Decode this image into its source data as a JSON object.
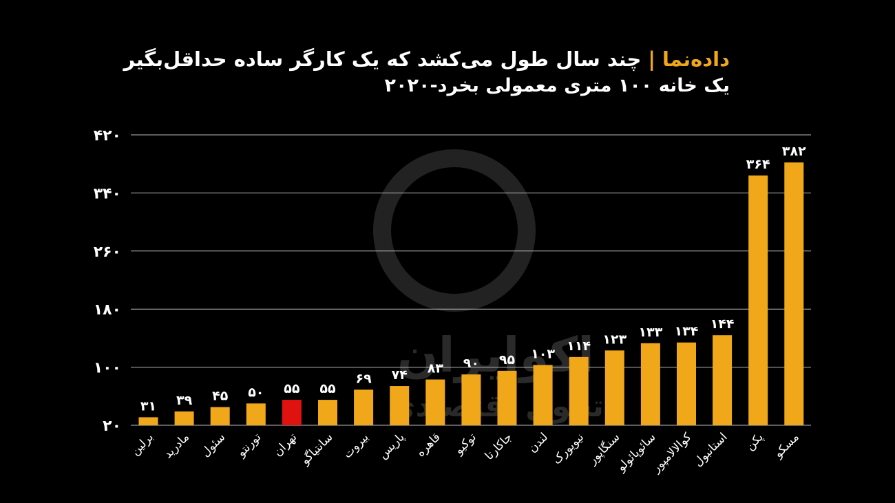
{
  "header": {
    "brand": "داده‌نما",
    "separator": "|",
    "title_line1": "چند سال طول می‌کشد که یک کارگر ساده حداقل‌بگیر",
    "title_line2": "یک خانه ۱۰۰ متری معمولی بخرد-۲۰۲۰"
  },
  "watermark": {
    "main": "اکوایران",
    "sub": "تحول اقتصادی"
  },
  "colors": {
    "bar": "#f0a81a",
    "highlight": "#e0120f",
    "grid": "#bdbdbd",
    "background": "#000000"
  },
  "chart_data": {
    "type": "bar",
    "categories": [
      "برلین",
      "مادرید",
      "سئول",
      "تورنتو",
      "تهران",
      "سانتیاگو",
      "بیروت",
      "پاریس",
      "قاهره",
      "توکیو",
      "جاکارتا",
      "لندن",
      "نیویورک",
      "سنگاپور",
      "سائوپائولو",
      "کوالالامپور",
      "استانبول",
      "پکن",
      "مسکو"
    ],
    "values": [
      31,
      39,
      45,
      50,
      55,
      55,
      69,
      74,
      83,
      90,
      95,
      103,
      114,
      123,
      133,
      134,
      144,
      364,
      382
    ],
    "value_labels": [
      "۳۱",
      "۳۹",
      "۴۵",
      "۵۰",
      "۵۵",
      "۵۵",
      "۶۹",
      "۷۴",
      "۸۳",
      "۹۰",
      "۹۵",
      "۱۰۳",
      "۱۱۴",
      "۱۲۳",
      "۱۳۳",
      "۱۳۴",
      "۱۴۴",
      "۳۶۴",
      "۳۸۲"
    ],
    "highlight_category": "تهران",
    "yticks": [
      20,
      100,
      180,
      260,
      340,
      420
    ],
    "ytick_labels": [
      "۲۰",
      "۱۰۰",
      "۱۸۰",
      "۲۶۰",
      "۳۴۰",
      "۴۲۰"
    ],
    "ylim": [
      20,
      420
    ],
    "grid": true
  }
}
